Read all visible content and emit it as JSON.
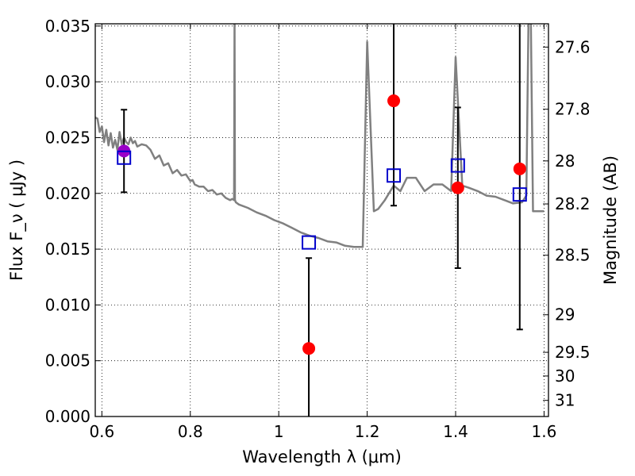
{
  "chart_data": {
    "type": "scatter",
    "xlabel": "Wavelength  λ (μm)",
    "ylabel": "Flux  F_ν  ( μJy )",
    "ylabel_right": "Magnitude (AB)",
    "xlim": [
      0.585,
      1.61
    ],
    "ylim": [
      0.0,
      0.0352
    ],
    "grid": true,
    "x_ticks": [
      {
        "value": 0.6,
        "label": "0.6"
      },
      {
        "value": 0.8,
        "label": "0.8"
      },
      {
        "value": 1.0,
        "label": "1"
      },
      {
        "value": 1.2,
        "label": "1.2"
      },
      {
        "value": 1.4,
        "label": "1.4"
      },
      {
        "value": 1.6,
        "label": "1.6"
      }
    ],
    "y_ticks": [
      {
        "value": 0.0,
        "label": "0.000"
      },
      {
        "value": 0.005,
        "label": "0.005"
      },
      {
        "value": 0.01,
        "label": "0.010"
      },
      {
        "value": 0.015,
        "label": "0.015"
      },
      {
        "value": 0.02,
        "label": "0.020"
      },
      {
        "value": 0.025,
        "label": "0.025"
      },
      {
        "value": 0.03,
        "label": "0.030"
      },
      {
        "value": 0.035,
        "label": "0.035"
      }
    ],
    "right_ticks": [
      {
        "mag": 27.6,
        "label": "27.6"
      },
      {
        "mag": 27.8,
        "label": "27.8"
      },
      {
        "mag": 28.0,
        "label": "28"
      },
      {
        "mag": 28.2,
        "label": "28.2"
      },
      {
        "mag": 28.5,
        "label": "28.5"
      },
      {
        "mag": 29.0,
        "label": "29"
      },
      {
        "mag": 29.5,
        "label": "29.5"
      },
      {
        "mag": 30.0,
        "label": "30"
      },
      {
        "mag": 31.0,
        "label": "31"
      }
    ],
    "sed_model": {
      "color": "#808080",
      "x": [
        0.585,
        0.59,
        0.595,
        0.6,
        0.605,
        0.61,
        0.615,
        0.62,
        0.625,
        0.63,
        0.635,
        0.64,
        0.645,
        0.65,
        0.655,
        0.66,
        0.665,
        0.67,
        0.675,
        0.68,
        0.69,
        0.7,
        0.71,
        0.72,
        0.73,
        0.74,
        0.75,
        0.76,
        0.77,
        0.78,
        0.79,
        0.8,
        0.805,
        0.81,
        0.82,
        0.83,
        0.84,
        0.85,
        0.86,
        0.87,
        0.88,
        0.89,
        0.895,
        0.899,
        0.9,
        0.901,
        0.903,
        0.91,
        0.93,
        0.95,
        0.97,
        0.99,
        1.01,
        1.03,
        1.05,
        1.07,
        1.09,
        1.11,
        1.13,
        1.15,
        1.17,
        1.19,
        1.2,
        1.215,
        1.225,
        1.24,
        1.26,
        1.275,
        1.29,
        1.31,
        1.33,
        1.35,
        1.37,
        1.39,
        1.4,
        1.415,
        1.43,
        1.45,
        1.47,
        1.49,
        1.51,
        1.53,
        1.55,
        1.56,
        1.565,
        1.57,
        1.575,
        1.58,
        1.6
      ],
      "y": [
        0.0268,
        0.0267,
        0.0255,
        0.026,
        0.0246,
        0.0257,
        0.0243,
        0.0254,
        0.0241,
        0.0248,
        0.0239,
        0.0255,
        0.0244,
        0.025,
        0.0246,
        0.0244,
        0.025,
        0.0245,
        0.0247,
        0.0242,
        0.0244,
        0.0243,
        0.0239,
        0.0231,
        0.0234,
        0.0225,
        0.0227,
        0.0218,
        0.0221,
        0.0216,
        0.0217,
        0.0211,
        0.0212,
        0.0208,
        0.0206,
        0.0206,
        0.0202,
        0.0203,
        0.0199,
        0.02,
        0.0196,
        0.0194,
        0.0195,
        0.0194,
        0.036,
        0.0194,
        0.0192,
        0.019,
        0.0187,
        0.0183,
        0.018,
        0.0176,
        0.0173,
        0.0169,
        0.0165,
        0.0162,
        0.016,
        0.0157,
        0.0156,
        0.0153,
        0.0152,
        0.0152,
        0.0336,
        0.0184,
        0.0186,
        0.0194,
        0.0207,
        0.0202,
        0.0214,
        0.0214,
        0.0202,
        0.0208,
        0.0208,
        0.0202,
        0.0322,
        0.0207,
        0.0205,
        0.0202,
        0.0198,
        0.0197,
        0.0194,
        0.0191,
        0.0192,
        0.0198,
        0.036,
        0.036,
        0.0184,
        0.0184,
        0.0184
      ]
    },
    "points": [
      {
        "x": 0.65,
        "y": 0.0238,
        "color": "#9a00c8"
      },
      {
        "x": 1.068,
        "y": 0.0061,
        "color": "#ff0000"
      },
      {
        "x": 1.26,
        "y": 0.0283,
        "color": "#ff0000"
      },
      {
        "x": 1.405,
        "y": 0.0205,
        "color": "#ff0000"
      },
      {
        "x": 1.545,
        "y": 0.0222,
        "color": "#ff0000"
      }
    ],
    "model_boxes": [
      {
        "x": 0.65,
        "y": 0.0232,
        "color": "#0000cc"
      },
      {
        "x": 1.068,
        "y": 0.0156,
        "color": "#0000cc"
      },
      {
        "x": 1.26,
        "y": 0.0216,
        "color": "#0000cc"
      },
      {
        "x": 1.405,
        "y": 0.0225,
        "color": "#0000cc"
      },
      {
        "x": 1.545,
        "y": 0.0199,
        "color": "#0000cc"
      }
    ],
    "error_bars": [
      {
        "x": 0.65,
        "low": 0.0201,
        "high": 0.0275
      },
      {
        "x": 1.068,
        "low": 0.0,
        "high": 0.0142
      },
      {
        "x": 1.26,
        "low": 0.0189,
        "high": 0.0352
      },
      {
        "x": 1.405,
        "low": 0.0133,
        "high": 0.0277
      },
      {
        "x": 1.545,
        "low": 0.0078,
        "high": 0.0352
      }
    ]
  }
}
